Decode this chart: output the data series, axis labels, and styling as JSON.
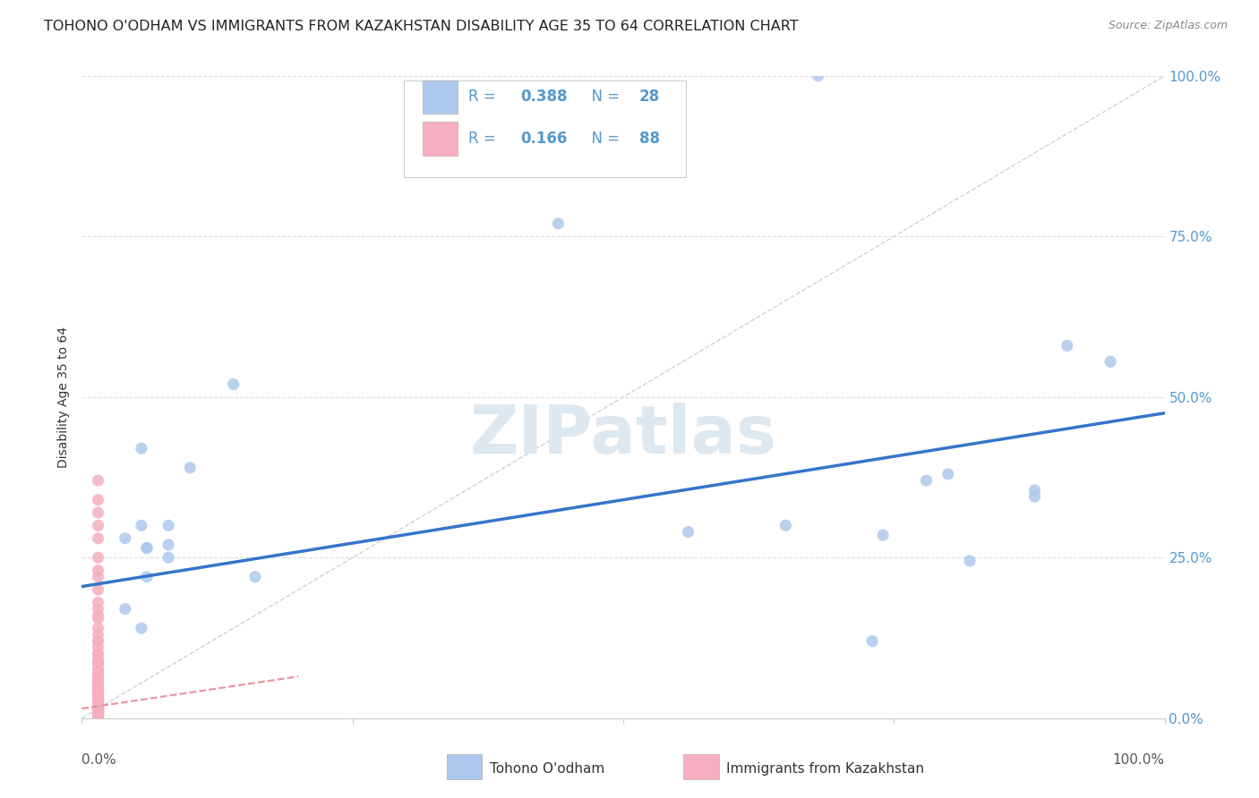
{
  "title": "TOHONO O'ODHAM VS IMMIGRANTS FROM KAZAKHSTAN DISABILITY AGE 35 TO 64 CORRELATION CHART",
  "source": "Source: ZipAtlas.com",
  "ylabel": "Disability Age 35 to 64",
  "xlim": [
    0.0,
    1.0
  ],
  "ylim": [
    0.0,
    1.0
  ],
  "watermark": "ZIPatlas",
  "blue_color": "#adc8ed",
  "blue_line_color": "#3575c8",
  "pink_color": "#f5afc0",
  "pink_line_color": "#e8909e",
  "diagonal_color": "#d0d0d0",
  "right_tick_color": "#5599cc",
  "blue_line_x": [
    0.0,
    1.0
  ],
  "blue_line_y": [
    0.205,
    0.475
  ],
  "pink_line_x": [
    0.0,
    0.2
  ],
  "pink_line_y": [
    0.015,
    0.065
  ],
  "tohono_x": [
    0.68,
    0.44,
    0.14,
    0.055,
    0.08,
    0.055,
    0.04,
    0.06,
    0.1,
    0.04,
    0.16,
    0.08,
    0.08,
    0.055,
    0.06,
    0.06,
    0.56,
    0.74,
    0.8,
    0.78,
    0.91,
    0.65,
    0.88,
    0.73,
    0.88,
    0.95,
    0.82
  ],
  "tohono_y": [
    1.0,
    0.77,
    0.52,
    0.42,
    0.3,
    0.3,
    0.28,
    0.22,
    0.39,
    0.17,
    0.22,
    0.27,
    0.25,
    0.14,
    0.265,
    0.265,
    0.29,
    0.285,
    0.38,
    0.37,
    0.58,
    0.3,
    0.355,
    0.12,
    0.345,
    0.555,
    0.245
  ],
  "kazakh_x": [
    0.015,
    0.015,
    0.015,
    0.015,
    0.015,
    0.015,
    0.015,
    0.015,
    0.015,
    0.015,
    0.015,
    0.015,
    0.015,
    0.015,
    0.015,
    0.015,
    0.015,
    0.015,
    0.015,
    0.015,
    0.015,
    0.015,
    0.015,
    0.015,
    0.015,
    0.015,
    0.015,
    0.015,
    0.015,
    0.015,
    0.015,
    0.015,
    0.015,
    0.015,
    0.015,
    0.015,
    0.015,
    0.015,
    0.015,
    0.015,
    0.015,
    0.015,
    0.015,
    0.015,
    0.015,
    0.015,
    0.015,
    0.015,
    0.015,
    0.015,
    0.015,
    0.015,
    0.015,
    0.015,
    0.015,
    0.015,
    0.015,
    0.015,
    0.015,
    0.015,
    0.015,
    0.015,
    0.015,
    0.015,
    0.015,
    0.015,
    0.015,
    0.015,
    0.015,
    0.015,
    0.015,
    0.015,
    0.015,
    0.015,
    0.015,
    0.015,
    0.015,
    0.015,
    0.015,
    0.015,
    0.015,
    0.015,
    0.015,
    0.015,
    0.015,
    0.015,
    0.015,
    0.015
  ],
  "kazakh_y": [
    0.37,
    0.34,
    0.32,
    0.3,
    0.28,
    0.25,
    0.23,
    0.22,
    0.2,
    0.18,
    0.17,
    0.16,
    0.155,
    0.14,
    0.13,
    0.12,
    0.12,
    0.11,
    0.1,
    0.1,
    0.09,
    0.09,
    0.085,
    0.085,
    0.075,
    0.075,
    0.07,
    0.065,
    0.065,
    0.06,
    0.055,
    0.055,
    0.05,
    0.05,
    0.045,
    0.045,
    0.04,
    0.04,
    0.04,
    0.035,
    0.035,
    0.035,
    0.03,
    0.03,
    0.03,
    0.03,
    0.03,
    0.025,
    0.025,
    0.025,
    0.025,
    0.025,
    0.02,
    0.02,
    0.02,
    0.02,
    0.02,
    0.02,
    0.015,
    0.015,
    0.015,
    0.015,
    0.015,
    0.015,
    0.015,
    0.01,
    0.01,
    0.01,
    0.01,
    0.01,
    0.01,
    0.01,
    0.01,
    0.01,
    0.01,
    0.005,
    0.005,
    0.005,
    0.005,
    0.005,
    0.005,
    0.005,
    0.005,
    0.005,
    0.005,
    0.005,
    0.005,
    0.005
  ],
  "marker_size": 90,
  "title_fontsize": 11.5,
  "label_fontsize": 10,
  "tick_fontsize": 11
}
